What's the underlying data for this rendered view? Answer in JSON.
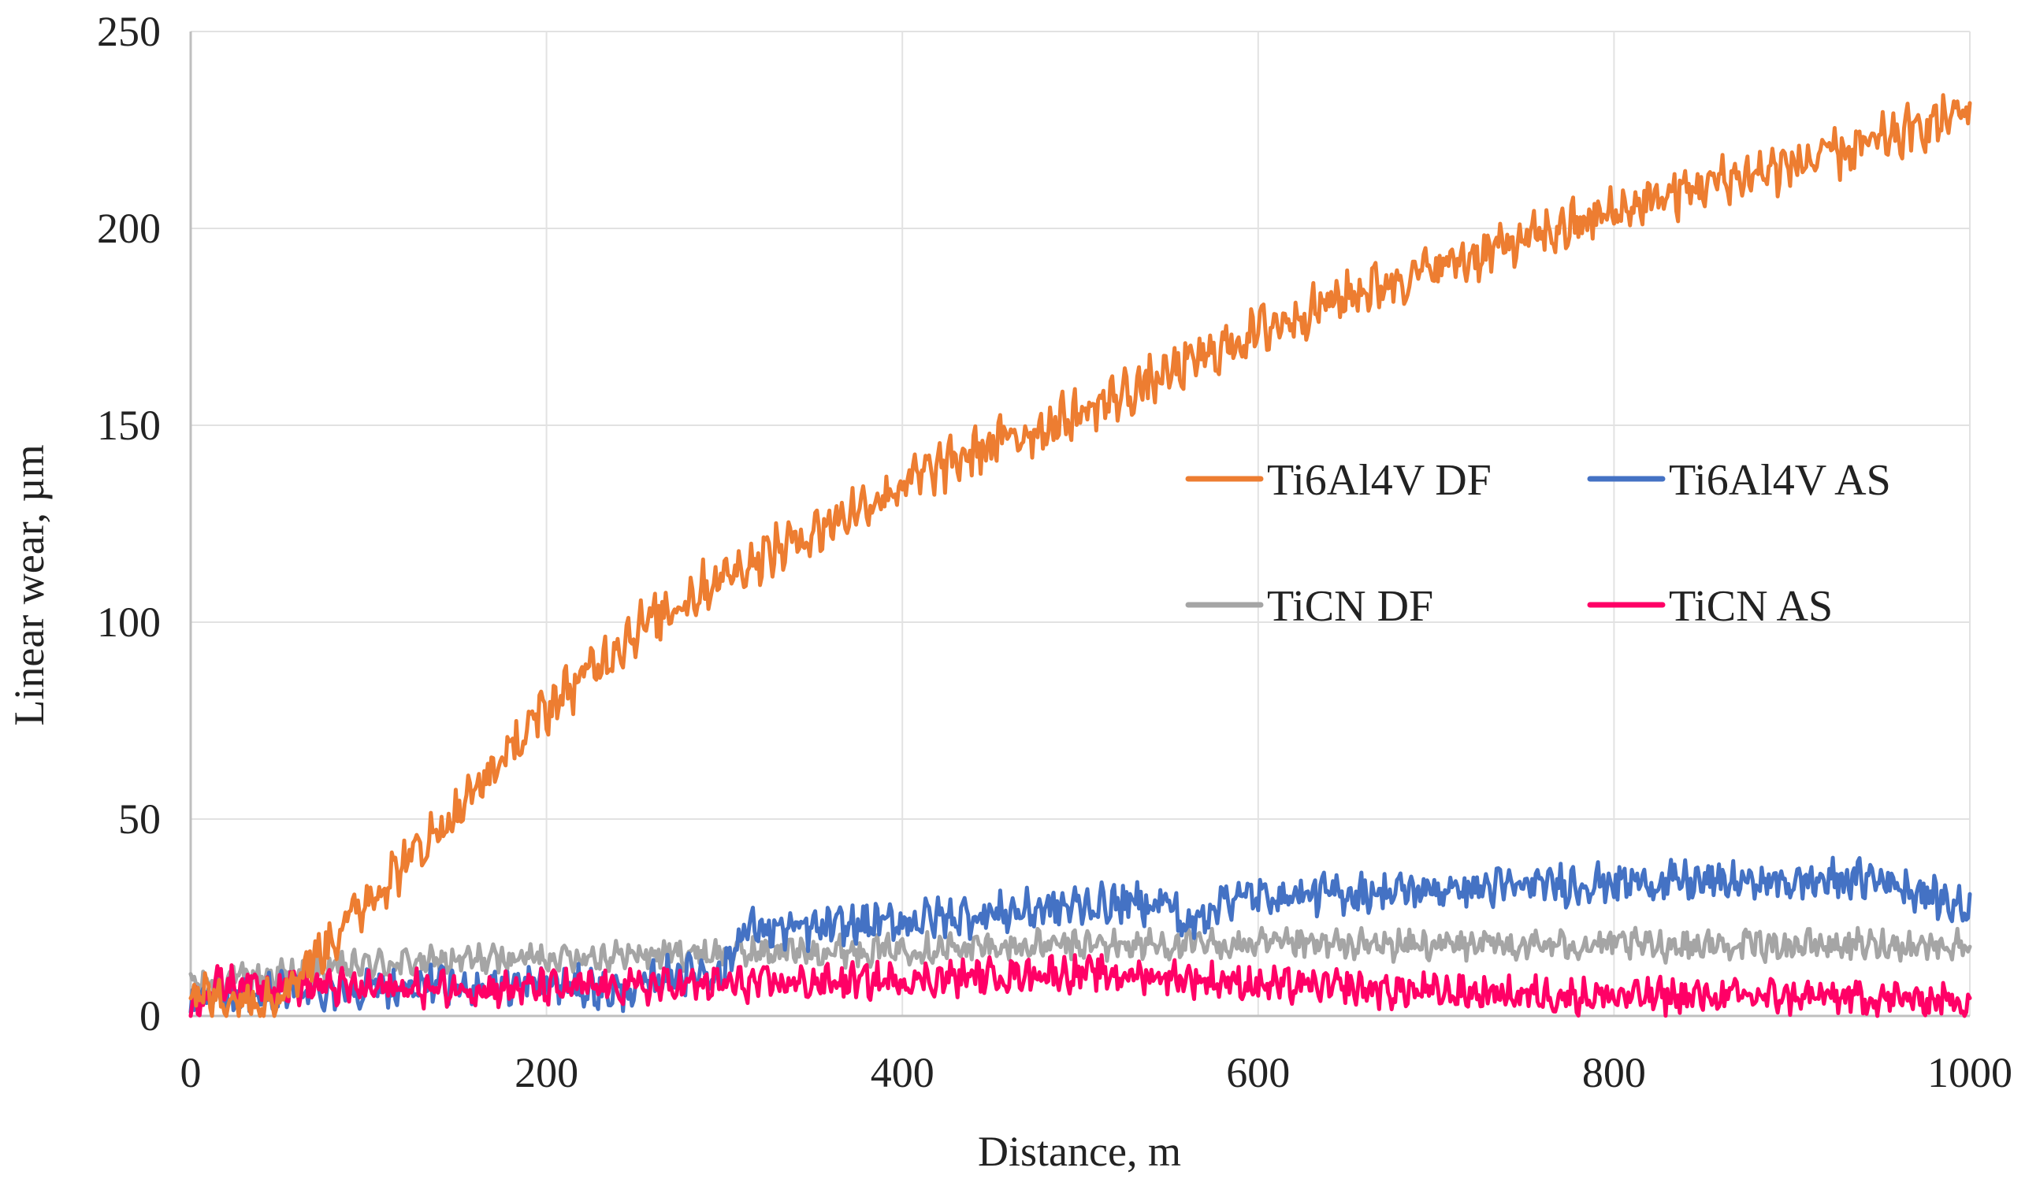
{
  "chart_data": {
    "type": "line",
    "title": "",
    "xlabel": "Distance, m",
    "ylabel": "Linear wear, µm",
    "xlim": [
      0,
      1000
    ],
    "ylim": [
      0,
      250
    ],
    "x_ticks": [
      0,
      200,
      400,
      600,
      800,
      1000
    ],
    "y_ticks": [
      0,
      50,
      100,
      150,
      200,
      250
    ],
    "grid": "on",
    "legend_position": "center-right, two columns",
    "series": [
      {
        "name": "Ti6Al4V DF",
        "color": "#ED7D31",
        "noise_amplitude": 5,
        "points": [
          [
            0,
            5
          ],
          [
            25,
            4
          ],
          [
            50,
            6
          ],
          [
            70,
            15
          ],
          [
            100,
            30
          ],
          [
            150,
            52
          ],
          [
            200,
            78
          ],
          [
            250,
            98
          ],
          [
            300,
            112
          ],
          [
            350,
            123
          ],
          [
            400,
            135
          ],
          [
            450,
            145
          ],
          [
            500,
            153
          ],
          [
            550,
            163
          ],
          [
            600,
            174
          ],
          [
            650,
            183
          ],
          [
            700,
            190
          ],
          [
            750,
            197
          ],
          [
            800,
            204
          ],
          [
            850,
            211
          ],
          [
            900,
            216
          ],
          [
            950,
            222
          ],
          [
            1000,
            230
          ]
        ]
      },
      {
        "name": "Ti6Al4V AS",
        "color": "#4472C4",
        "noise_amplitude": 4,
        "points": [
          [
            0,
            3
          ],
          [
            50,
            6
          ],
          [
            100,
            7
          ],
          [
            200,
            8
          ],
          [
            250,
            6
          ],
          [
            270,
            11
          ],
          [
            300,
            11
          ],
          [
            310,
            22
          ],
          [
            350,
            22
          ],
          [
            400,
            24
          ],
          [
            450,
            26
          ],
          [
            500,
            28
          ],
          [
            550,
            29
          ],
          [
            560,
            22
          ],
          [
            580,
            30
          ],
          [
            700,
            32
          ],
          [
            800,
            34
          ],
          [
            900,
            34
          ],
          [
            950,
            35
          ],
          [
            1000,
            27
          ]
        ]
      },
      {
        "name": "TiCN DF",
        "color": "#A5A5A5",
        "noise_amplitude": 3,
        "points": [
          [
            0,
            8
          ],
          [
            100,
            13
          ],
          [
            200,
            15
          ],
          [
            300,
            16
          ],
          [
            400,
            17
          ],
          [
            500,
            18
          ],
          [
            600,
            18
          ],
          [
            800,
            18
          ],
          [
            1000,
            18
          ]
        ]
      },
      {
        "name": "TiCN AS",
        "color": "#FF0066",
        "noise_amplitude": 3.5,
        "points": [
          [
            0,
            3
          ],
          [
            15,
            8
          ],
          [
            40,
            8
          ],
          [
            100,
            7
          ],
          [
            200,
            7
          ],
          [
            300,
            8
          ],
          [
            400,
            9
          ],
          [
            480,
            11
          ],
          [
            550,
            10
          ],
          [
            600,
            8
          ],
          [
            700,
            6
          ],
          [
            800,
            5
          ],
          [
            900,
            5
          ],
          [
            1000,
            4
          ]
        ]
      }
    ]
  }
}
